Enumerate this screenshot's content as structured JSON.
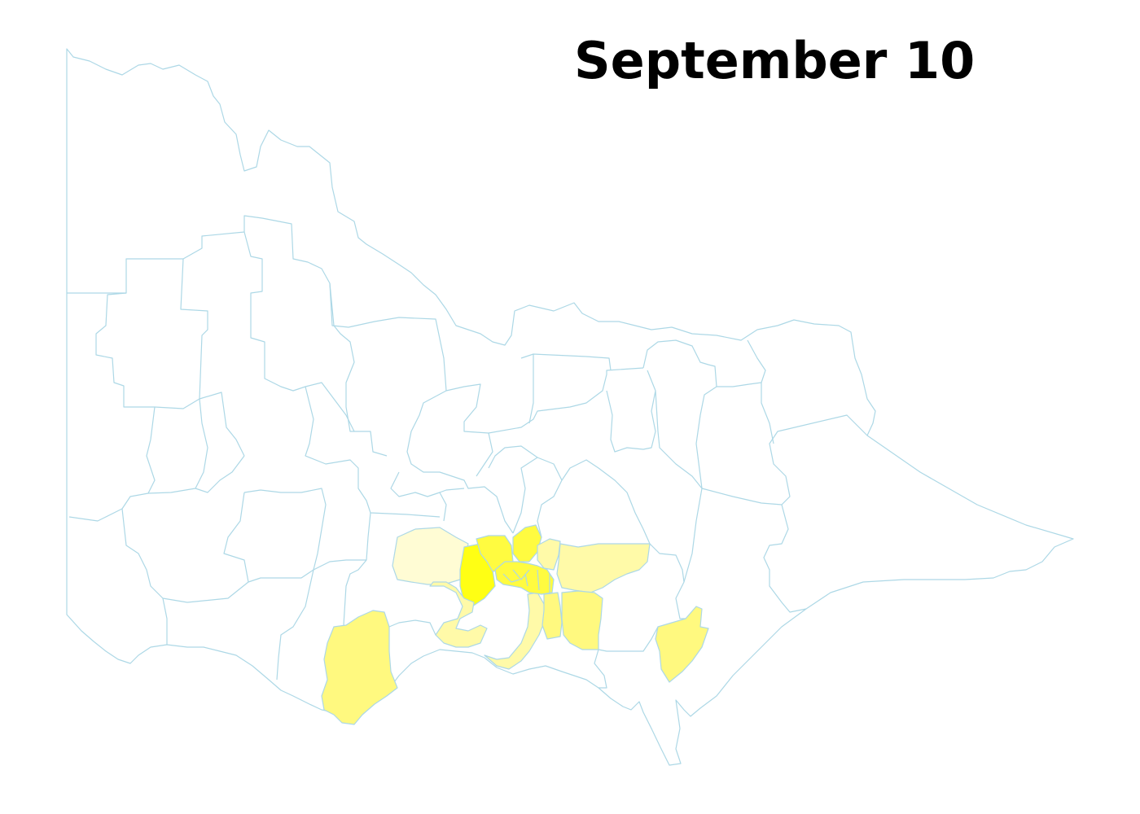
{
  "title": "September 10",
  "colors": {
    "boundary": "#add8e6",
    "background": "#ffffff",
    "none": "#ffffff",
    "very_low": "#fffcd4",
    "low": "#fffaa8",
    "medium": "#fff97f",
    "high": "#fffb40",
    "highest": "#ffff14"
  },
  "regions": [
    {
      "name": "victoria-outline",
      "level": "none"
    },
    {
      "name": "melton",
      "level": "very_low"
    },
    {
      "name": "wyndham",
      "level": "highest"
    },
    {
      "name": "hume",
      "level": "high"
    },
    {
      "name": "whittlesea",
      "level": "high"
    },
    {
      "name": "nillumbik",
      "level": "low"
    },
    {
      "name": "yarra-ranges",
      "level": "low"
    },
    {
      "name": "greater-geelong",
      "level": "low"
    },
    {
      "name": "bayside-kingston",
      "level": "low"
    },
    {
      "name": "dandenong",
      "level": "medium"
    },
    {
      "name": "casey",
      "level": "medium"
    },
    {
      "name": "corangamite",
      "level": "medium"
    },
    {
      "name": "latrobe",
      "level": "medium"
    },
    {
      "name": "inner-metro",
      "level": "high"
    }
  ]
}
